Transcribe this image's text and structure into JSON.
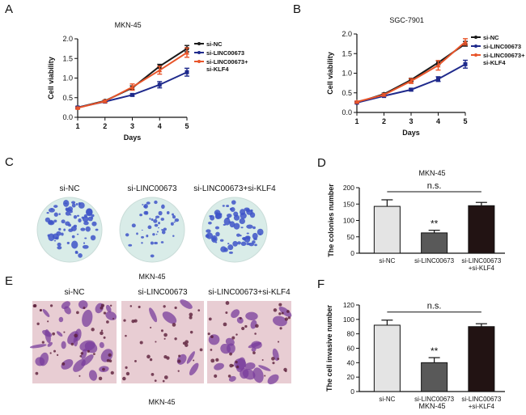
{
  "panels": {
    "A": "A",
    "B": "B",
    "C": "C",
    "D": "D",
    "E": "E",
    "F": "F"
  },
  "colors": {
    "si_nc": "#1a1a1a",
    "si_linc": "#1f2a8c",
    "si_linc_klf4": "#e8552a",
    "bar_nc": "#e4e4e4",
    "bar_linc": "#595959",
    "bar_klf4": "#221313",
    "colony_stain": "#3e55c8",
    "colony_dish": "#d9ece8",
    "invasion_stain": "#7a3d9c",
    "invasion_bg": "#e8cdd3"
  },
  "panel_c": {
    "labels": [
      "si-NC",
      "si-LINC00673",
      "si-LINC00673+si-KLF4"
    ],
    "caption": "MKN-45"
  },
  "panel_e": {
    "labels": [
      "si-NC",
      "si-LINC00673",
      "si-LINC00673+si-KLF4"
    ],
    "caption": "MKN-45"
  },
  "chart_data": [
    {
      "id": "A",
      "type": "line",
      "title": "MKN-45",
      "xlabel": "Days",
      "ylabel": "Cell viability",
      "x": [
        1,
        2,
        3,
        4,
        5
      ],
      "xlim": [
        1,
        5
      ],
      "ylim": [
        0,
        2.0
      ],
      "yticks": [
        0.0,
        0.5,
        1.0,
        1.5,
        2.0
      ],
      "ytick_labels": [
        "0.0",
        "0.5",
        "1.0",
        "1.5",
        "2.0"
      ],
      "xtick_labels": [
        "1",
        "2",
        "3",
        "4",
        "5"
      ],
      "legend": [
        "si-NC",
        "si-LINC00673",
        "si-LINC00673+",
        "si-KLF4"
      ],
      "series": [
        {
          "name": "si-NC",
          "values": [
            0.25,
            0.42,
            0.75,
            1.3,
            1.75
          ],
          "errors": [
            0.02,
            0.02,
            0.05,
            0.05,
            0.08
          ]
        },
        {
          "name": "si-LINC00673",
          "values": [
            0.25,
            0.4,
            0.57,
            0.83,
            1.15
          ],
          "errors": [
            0.02,
            0.02,
            0.03,
            0.08,
            0.1
          ]
        },
        {
          "name": "si-LINC00673+si-KLF4",
          "values": [
            0.24,
            0.41,
            0.77,
            1.2,
            1.65
          ],
          "errors": [
            0.02,
            0.03,
            0.08,
            0.1,
            0.12
          ]
        }
      ]
    },
    {
      "id": "B",
      "type": "line",
      "title": "SGC-7901",
      "xlabel": "Days",
      "ylabel": "Cell viability",
      "x": [
        1,
        2,
        3,
        4,
        5
      ],
      "xlim": [
        1,
        5
      ],
      "ylim": [
        0,
        2.0
      ],
      "yticks": [
        0.0,
        0.5,
        1.0,
        1.5,
        2.0
      ],
      "ytick_labels": [
        "0.0",
        "0.5",
        "1.0",
        "1.5",
        "2.0"
      ],
      "xtick_labels": [
        "1",
        "2",
        "3",
        "4",
        "5"
      ],
      "legend": [
        "si-NC",
        "si-LINC00673",
        "si-LINC00673+",
        "si-KLF4"
      ],
      "series": [
        {
          "name": "si-NC",
          "values": [
            0.25,
            0.47,
            0.83,
            1.27,
            1.75
          ],
          "errors": [
            0.02,
            0.02,
            0.04,
            0.05,
            0.06
          ]
        },
        {
          "name": "si-LINC00673",
          "values": [
            0.25,
            0.42,
            0.58,
            0.85,
            1.23
          ],
          "errors": [
            0.02,
            0.02,
            0.03,
            0.06,
            0.1
          ]
        },
        {
          "name": "si-LINC00673+si-KLF4",
          "values": [
            0.27,
            0.45,
            0.8,
            1.2,
            1.8
          ],
          "errors": [
            0.02,
            0.03,
            0.06,
            0.12,
            0.08
          ]
        }
      ]
    },
    {
      "id": "D",
      "type": "bar",
      "title": "MKN-45",
      "ylabel": "The colonies number",
      "categories": [
        "si-NC",
        "si-LINC00673",
        "si-LINC00673\n+si-KLF4"
      ],
      "category_lines": [
        [
          "si-NC"
        ],
        [
          "si-LINC00673"
        ],
        [
          "si-LINC00673",
          "+si-KLF4"
        ]
      ],
      "values": [
        143,
        62,
        145
      ],
      "errors": [
        20,
        8,
        10
      ],
      "ylim": [
        0,
        200
      ],
      "yticks": [
        0,
        50,
        100,
        150,
        200
      ],
      "ytick_labels": [
        "0",
        "50",
        "100",
        "150",
        "200"
      ],
      "annotation_sig": "**",
      "annotation_ns": "n.s."
    },
    {
      "id": "F",
      "type": "bar",
      "title": "MKN-45",
      "ylabel": "The cell invasive number",
      "categories": [
        "si-NC",
        "si-LINC00673",
        "si-LINC00673\n+si-KLF4"
      ],
      "category_lines": [
        [
          "si-NC"
        ],
        [
          "si-LINC00673"
        ],
        [
          "si-LINC00673",
          "+si-KLF4"
        ]
      ],
      "values": [
        92,
        40,
        90
      ],
      "errors": [
        7,
        7,
        4
      ],
      "ylim": [
        0,
        120
      ],
      "yticks": [
        0,
        20,
        40,
        60,
        80,
        100,
        120
      ],
      "ytick_labels": [
        "0",
        "20",
        "40",
        "60",
        "80",
        "100",
        "120"
      ],
      "annotation_sig": "**",
      "annotation_ns": "n.s."
    }
  ]
}
